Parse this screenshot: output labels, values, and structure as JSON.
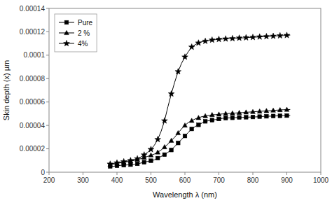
{
  "chart_data": {
    "type": "line",
    "xlabel": "Wavelength λ (nm)",
    "ylabel": "Skin depth (x) µm",
    "xlim": [
      200,
      1000
    ],
    "ylim": [
      0,
      0.00014
    ],
    "xticks": [
      200,
      300,
      400,
      500,
      600,
      700,
      800,
      900,
      1000
    ],
    "yticks": [
      0,
      2e-05,
      4e-05,
      6e-05,
      8e-05,
      0.0001,
      0.00012,
      0.00014
    ],
    "legend": "upper left",
    "grid": false,
    "x": [
      380,
      390,
      400,
      410,
      420,
      430,
      440,
      450,
      460,
      470,
      480,
      490,
      500,
      510,
      520,
      530,
      540,
      550,
      560,
      570,
      580,
      590,
      600,
      610,
      620,
      630,
      640,
      650,
      660,
      670,
      680,
      690,
      700,
      710,
      720,
      730,
      740,
      750,
      760,
      770,
      780,
      790,
      800,
      810,
      820,
      830,
      840,
      850,
      860,
      870,
      880,
      890,
      900,
      910
    ],
    "series": [
      {
        "name": "Pure",
        "color": "#000000",
        "marker": "square",
        "values": [
          5e-06,
          5e-06,
          5.5e-06,
          5.8e-06,
          6e-06,
          6.2e-06,
          6.5e-06,
          6.8e-06,
          7.2e-06,
          7.8e-06,
          8.5e-06,
          9.2e-06,
          9.8e-06,
          1.05e-05,
          1.2e-05,
          1.35e-05,
          1.5e-05,
          1.7e-05,
          1.9e-05,
          2.2e-05,
          2.5e-05,
          2.8e-05,
          3.1e-05,
          3.4e-05,
          3.7e-05,
          3.9e-05,
          4.05e-05,
          4.2e-05,
          4.35e-05,
          4.4e-05,
          4.45e-05,
          4.5e-05,
          4.55e-05,
          4.6e-05,
          4.62e-05,
          4.64e-05,
          4.65e-05,
          4.67e-05,
          4.68e-05,
          4.69e-05,
          4.7e-05,
          4.71e-05,
          4.72e-05,
          4.73e-05,
          4.75e-05,
          4.77e-05,
          4.78e-05,
          4.79e-05,
          4.8e-05,
          4.81e-05,
          4.82e-05,
          4.83e-05,
          4.84e-05,
          4.85e-05
        ]
      },
      {
        "name": "2 %",
        "color": "#000000",
        "marker": "triangle",
        "values": [
          6.5e-06,
          7e-06,
          7.5e-06,
          8e-06,
          8.5e-06,
          9e-06,
          9.5e-06,
          1e-05,
          1.08e-05,
          1.15e-05,
          1.25e-05,
          1.35e-05,
          1.45e-05,
          1.55e-05,
          1.7e-05,
          1.9e-05,
          2.15e-05,
          2.4e-05,
          2.7e-05,
          3e-05,
          3.35e-05,
          3.7e-05,
          4e-05,
          4.25e-05,
          4.4e-05,
          4.55e-05,
          4.65e-05,
          4.75e-05,
          4.8e-05,
          4.85e-05,
          4.9e-05,
          4.92e-05,
          4.94e-05,
          4.98e-05,
          5e-05,
          5.02e-05,
          5.04e-05,
          5.06e-05,
          5.08e-05,
          5.1e-05,
          5.12e-05,
          5.14e-05,
          5.16e-05,
          5.18e-05,
          5.2e-05,
          5.22e-05,
          5.24e-05,
          5.25e-05,
          5.28e-05,
          5.3e-05,
          5.32e-05,
          5.34e-05,
          5.35e-05,
          5.36e-05
        ]
      },
      {
        "name": "4%",
        "color": "#000000",
        "marker": "star",
        "values": [
          7e-06,
          7.5e-06,
          8e-06,
          8.5e-06,
          9e-06,
          9.5e-06,
          1e-05,
          1.08e-05,
          1.15e-05,
          1.3e-05,
          1.48e-05,
          1.7e-05,
          1.95e-05,
          2.3e-05,
          2.8e-05,
          3.5e-05,
          4.4e-05,
          5.6e-05,
          6.7e-05,
          7.7e-05,
          8.6e-05,
          9.3e-05,
          9.85e-05,
          0.000103,
          0.000107,
          0.000109,
          0.0001105,
          0.0001115,
          0.000112,
          0.0001125,
          0.000113,
          0.0001133,
          0.0001136,
          0.0001138,
          0.000114,
          0.0001142,
          0.0001143,
          0.0001145,
          0.0001147,
          0.0001148,
          0.000115,
          0.0001152,
          0.0001153,
          0.0001155,
          0.0001157,
          0.0001158,
          0.000116,
          0.0001162,
          0.0001163,
          0.0001165,
          0.0001167,
          0.0001168,
          0.000117,
          0.0001172
        ]
      }
    ]
  }
}
